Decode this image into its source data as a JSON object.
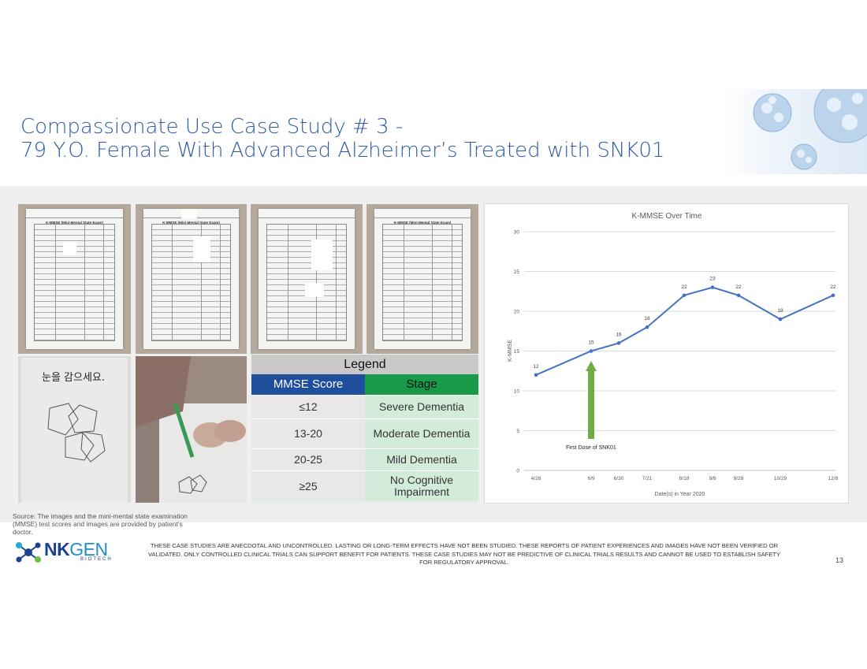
{
  "title": {
    "line1": "Compassionate Use Case Study # 3 -",
    "line2": "79 Y.O. Female With Advanced Alzheimer’s Treated with SNK01"
  },
  "photos": {
    "form_title": "K-MMSE (Mini-Mental State Exam)",
    "drawing_instruction": "눈을 감으세요."
  },
  "legend": {
    "title": "Legend",
    "col1_header": "MMSE  Score",
    "col2_header": "Stage",
    "rows": [
      {
        "score": "≤12",
        "stage": "Severe Dementia"
      },
      {
        "score": "13-20",
        "stage": "Moderate Dementia"
      },
      {
        "score": "20-25",
        "stage": "Mild Dementia"
      },
      {
        "score": "≥25",
        "stage": "No Cognitive Impairment"
      }
    ],
    "colors": {
      "score_header": "#1f4e9c",
      "stage_header": "#199a48"
    }
  },
  "chart_data": {
    "type": "line",
    "title": "K-MMSE Over Time",
    "xlabel": "Date(s) in Year 2020",
    "ylabel": "K-MMSE",
    "ylim": [
      0,
      30
    ],
    "yticks": [
      0,
      5,
      10,
      15,
      20,
      25,
      30
    ],
    "grid": true,
    "x": [
      "4/28",
      "6/9",
      "6/30",
      "7/21",
      "8/18",
      "9/8",
      "9/28",
      "10/29",
      "12/8"
    ],
    "values": [
      12,
      15,
      16,
      18,
      22,
      23,
      22,
      19,
      22
    ],
    "annotation": {
      "text": "First Dose of SNK01",
      "x": "6/9"
    },
    "line_color": "#4472c4",
    "arrow_color": "#70ad47"
  },
  "footer": {
    "source": "Source: The images and the mini-mental state examination (MMSE) test scores and images are provided by patient’s doctor.",
    "logo_main": "NK",
    "logo_accent": "GEN",
    "logo_sub": "BIOTECH",
    "disclaimer": "THESE CASE STUDIES ARE ANECDOTAL AND UNCONTROLLED.  LASTING OR LONG-TERM EFFECTS HAVE NOT BEEN STUDIED.  THESE REPORTS OF PATIENT EXPERIENCES AND IMAGES HAVE NOT BEEN VERIFIED OR VALIDATED.  ONLY CONTROLLED CLINICAL TRIALS CAN SUPPORT BENEFIT FOR PATIENTS.  THESE CASE STUDIES MAY NOT BE PREDICTIVE OF CLINICAL TRIALS RESULTS AND CANNOT BE USED TO ESTABLISH SAFETY FOR REGULATORY APPROVAL.",
    "page_number": "13"
  }
}
